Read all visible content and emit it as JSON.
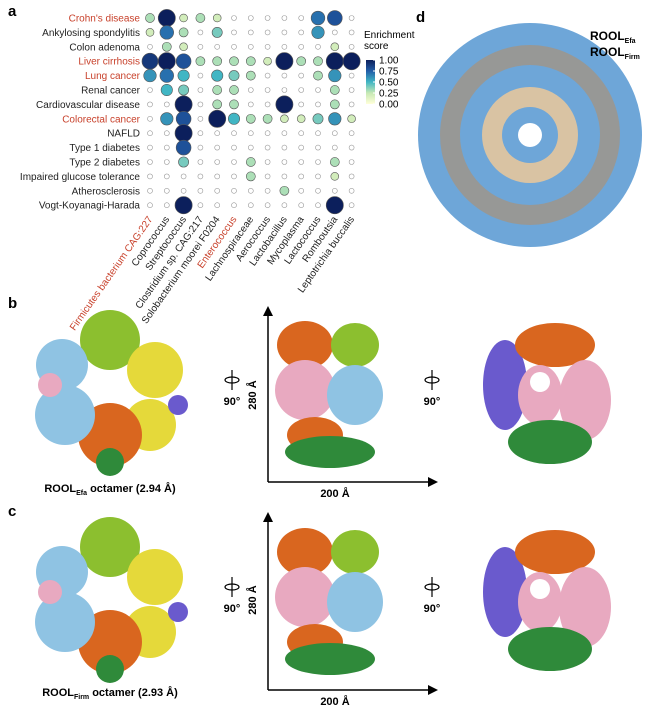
{
  "chart_data": {
    "type": "dotmatrix",
    "rows": [
      "Crohn's disease",
      "Ankylosing spondylitis",
      "Colon adenoma",
      "Liver cirrhosis",
      "Lung cancer",
      "Renal cancer",
      "Cardiovascular disease",
      "Colorectal cancer",
      "NAFLD",
      "Type 1 diabetes",
      "Type 2 diabetes",
      "Impaired glucose tolerance",
      "Atherosclerosis",
      "Vogt-Koyanagi-Harada"
    ],
    "row_colors": [
      "#c8412b",
      "#222222",
      "#222222",
      "#c8412b",
      "#c8412b",
      "#222222",
      "#222222",
      "#c8412b",
      "#222222",
      "#222222",
      "#222222",
      "#222222",
      "#222222",
      "#222222"
    ],
    "categories": [
      "Firmicutes bacterium CAG:227",
      "Coprococcus",
      "Streptococcus",
      "Clostridium sp. CAG:217",
      "Solobacterium moorei F0204",
      "Enterococcus",
      "Lachnospiraceae",
      "Aerococcus",
      "Lactobacillus",
      "Mycoplasma",
      "Lactococcus",
      "Romboutsia",
      "Leptotrichia buccalis"
    ],
    "category_colors": [
      "#c8412b",
      "#222222",
      "#222222",
      "#222222",
      "#222222",
      "#c8412b",
      "#222222",
      "#222222",
      "#222222",
      "#222222",
      "#222222",
      "#222222",
      "#222222"
    ],
    "values": [
      [
        0.3,
        1.0,
        0.2,
        0.3,
        0.2,
        0,
        0,
        0,
        0,
        0,
        0.7,
        0.8,
        0
      ],
      [
        0.2,
        0.7,
        0.3,
        0,
        0.4,
        0,
        0,
        0,
        0,
        0,
        0.6,
        0,
        0
      ],
      [
        0,
        0.3,
        0.2,
        0,
        0,
        0,
        0,
        0,
        0,
        0,
        0,
        0.2,
        0
      ],
      [
        0.9,
        1.0,
        0.8,
        0.3,
        0.3,
        0.3,
        0.3,
        0.2,
        1.0,
        0.3,
        0.3,
        1.0,
        1.0
      ],
      [
        0.6,
        0.7,
        0.5,
        0,
        0.5,
        0.4,
        0.3,
        0,
        0,
        0,
        0.3,
        0.6,
        0
      ],
      [
        0,
        0.5,
        0.4,
        0,
        0.3,
        0.3,
        0,
        0,
        0,
        0,
        0,
        0.3,
        0
      ],
      [
        0,
        0,
        1.0,
        0,
        0.3,
        0.3,
        0,
        0,
        1.0,
        0,
        0,
        0.3,
        0
      ],
      [
        0,
        0.6,
        0.8,
        0,
        1.0,
        0.5,
        0.3,
        0.3,
        0.2,
        0.2,
        0.4,
        0.6,
        0.2
      ],
      [
        0,
        0,
        1.0,
        0,
        0,
        0,
        0,
        0,
        0,
        0,
        0,
        0,
        0
      ],
      [
        0,
        0,
        0.8,
        0,
        0,
        0,
        0,
        0,
        0,
        0,
        0,
        0,
        0
      ],
      [
        0,
        0,
        0.4,
        0,
        0,
        0,
        0.3,
        0,
        0,
        0,
        0,
        0.3,
        0
      ],
      [
        0,
        0,
        0,
        0,
        0,
        0,
        0.3,
        0,
        0,
        0,
        0,
        0.2,
        0
      ],
      [
        0,
        0,
        0,
        0,
        0,
        0,
        0,
        0,
        0.3,
        0,
        0,
        0,
        0
      ],
      [
        0,
        0,
        1.0,
        0,
        0,
        0,
        0,
        0,
        0,
        0,
        0,
        1.0,
        0
      ]
    ],
    "legend_title": "Enrichment score",
    "clim": [
      0,
      1
    ],
    "cticks": [
      {
        "value": 1,
        "label": "1.00"
      },
      {
        "value": 0.75,
        "label": "0.75"
      },
      {
        "value": 0.5,
        "label": "0.50"
      },
      {
        "value": 0.25,
        "label": "0.25"
      },
      {
        "value": 0,
        "label": "0.00"
      }
    ],
    "colormap": [
      "#ffffd9",
      "#c7e9b4",
      "#41b6c4",
      "#225ea8",
      "#0c1f5c"
    ]
  },
  "panel_labels": [
    "a",
    "b",
    "c",
    "d"
  ],
  "legend_d": [
    {
      "main": "ROOL",
      "sub": "Efa",
      "color": "#6ea6d8"
    },
    {
      "main": "ROOL",
      "sub": "Firm",
      "color": "#b38f6a"
    }
  ],
  "structures": [
    {
      "main": "ROOL",
      "sub": "Efa",
      "rest": " octamer (2.94 Å)",
      "rotation": "90°",
      "height": "280 Å",
      "width": "200 Å"
    },
    {
      "main": "ROOL",
      "sub": "Firm",
      "rest": " octamer (2.93 Å)",
      "rotation": "90°",
      "height": "280 Å",
      "width": "200 Å"
    }
  ]
}
